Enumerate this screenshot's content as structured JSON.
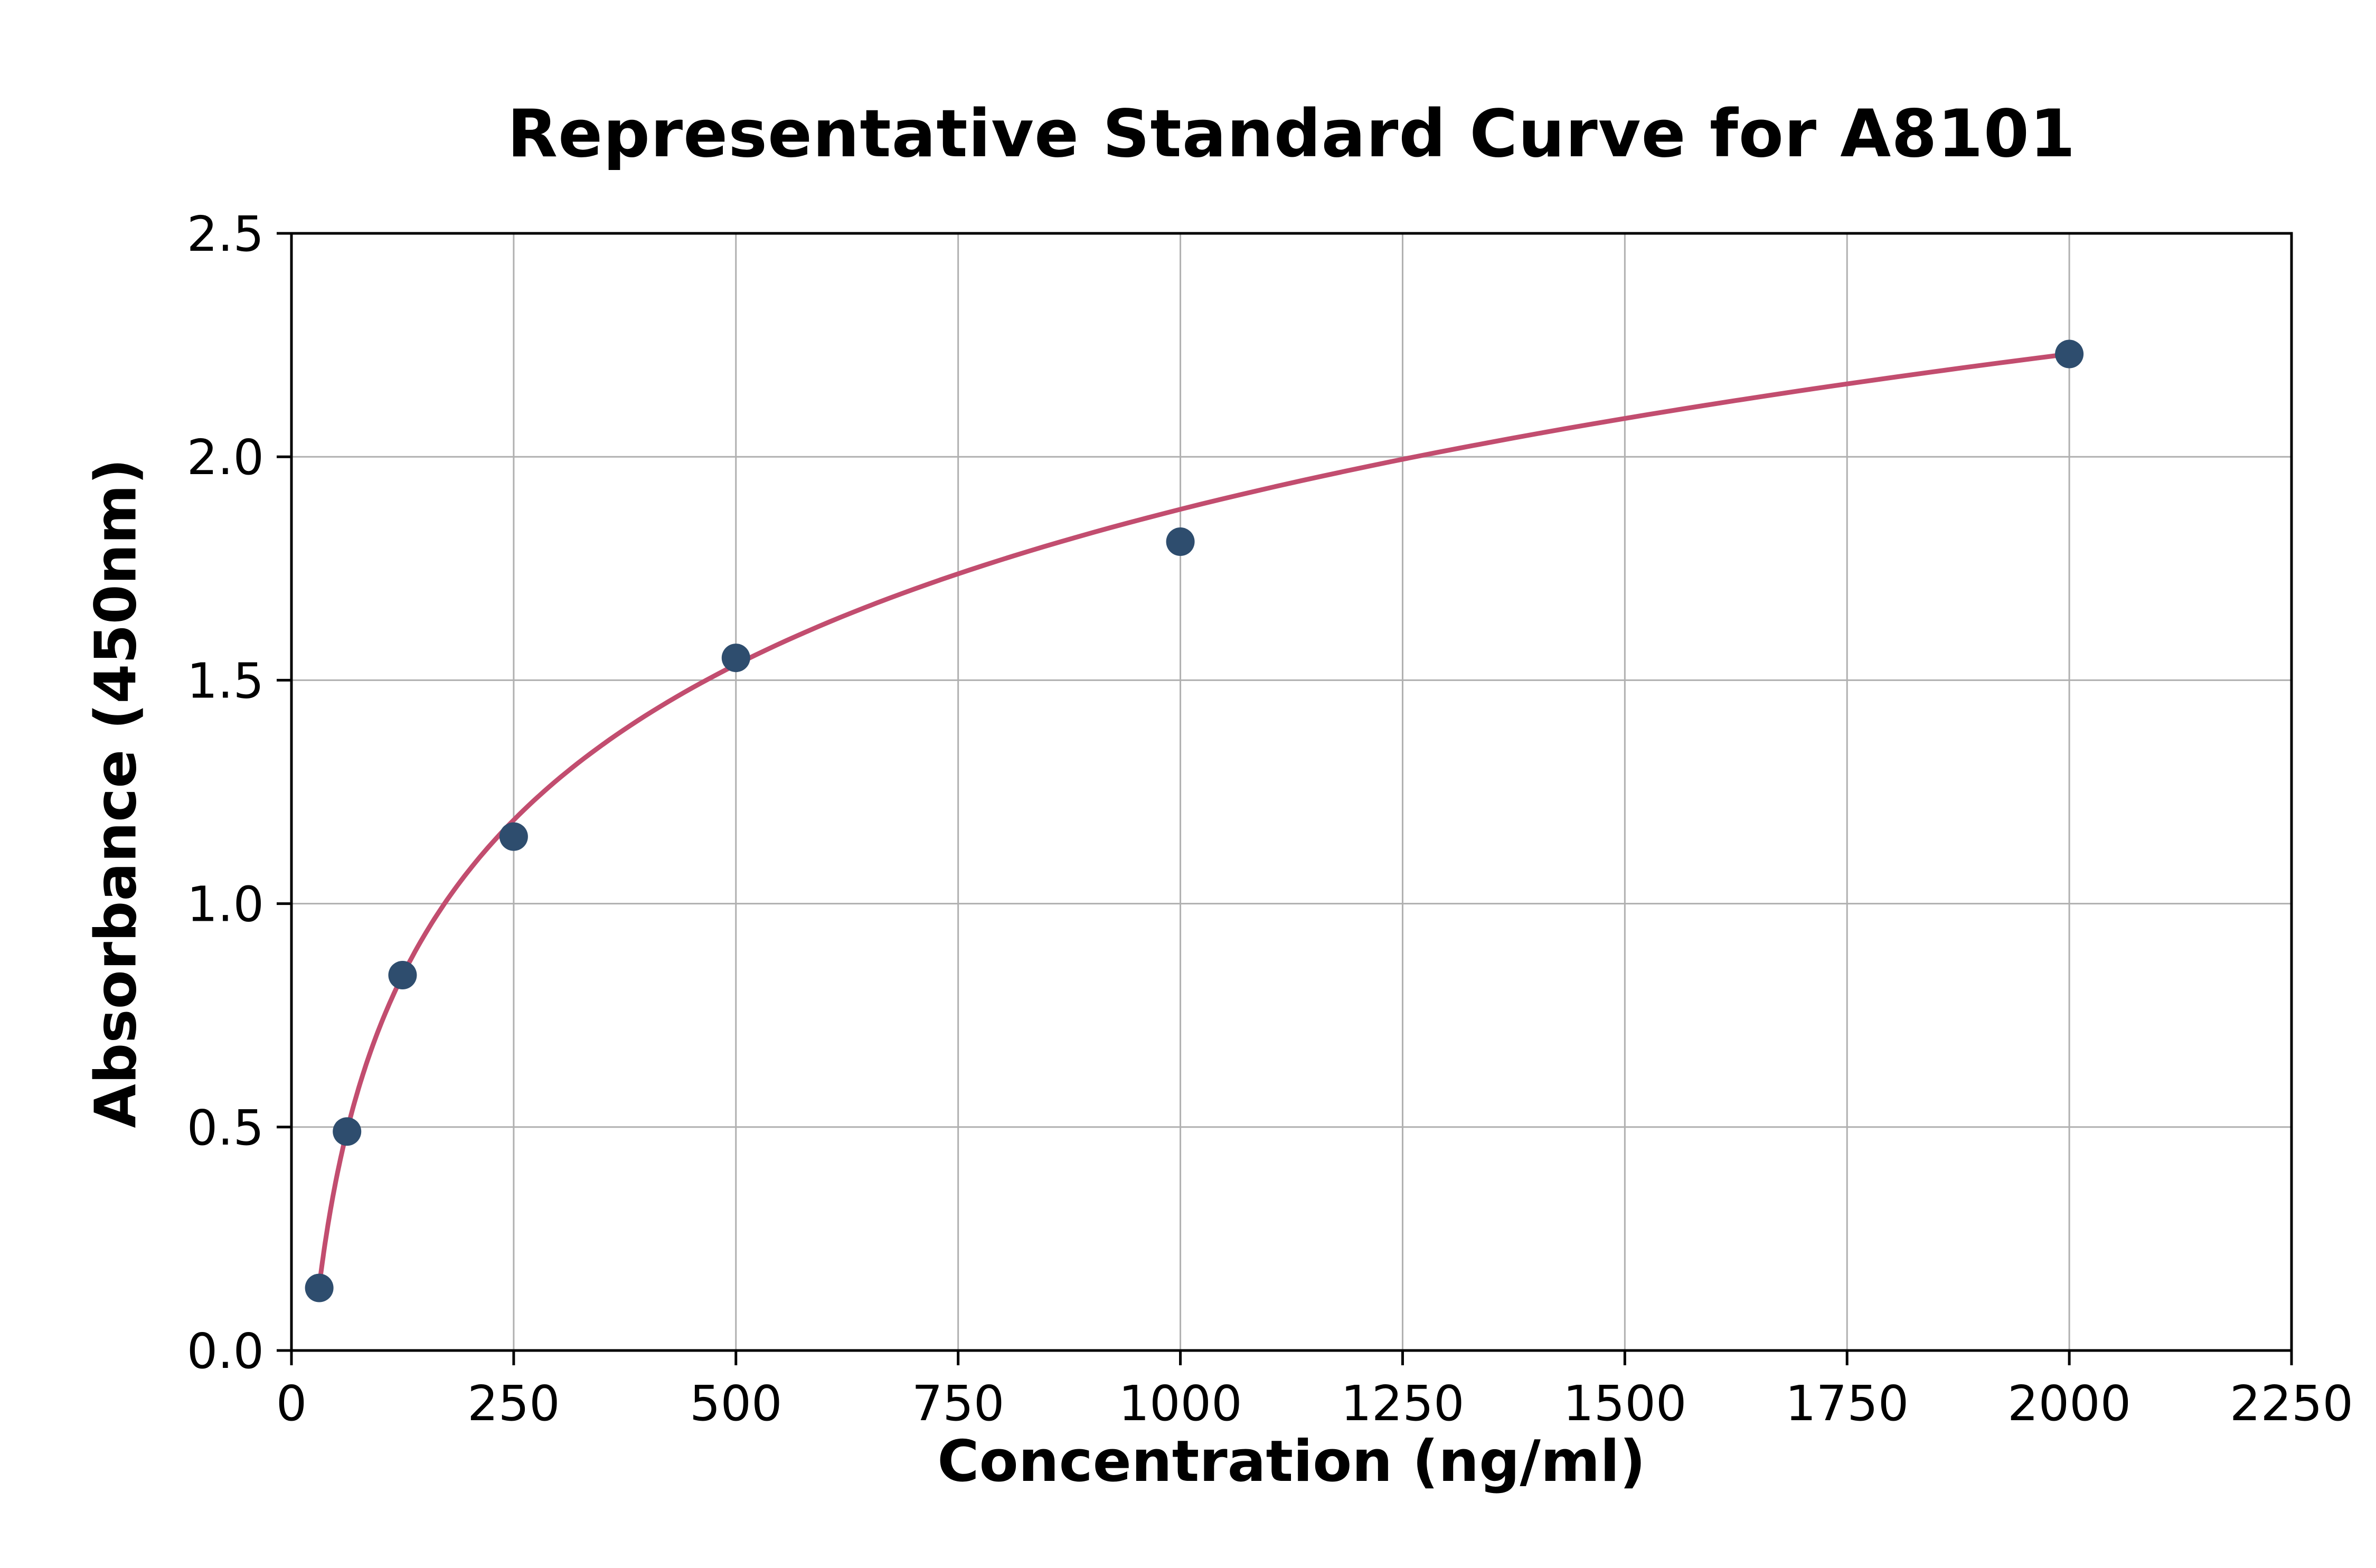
{
  "chart_data": {
    "type": "scatter",
    "title": "Representative Standard Curve for A8101",
    "xlabel": "Concentration (ng/ml)",
    "ylabel": "Absorbance (450nm)",
    "xlim": [
      0,
      2250
    ],
    "ylim": [
      0,
      2.5
    ],
    "xticks": [
      0,
      250,
      500,
      750,
      1000,
      1250,
      1500,
      1750,
      2000,
      2250
    ],
    "yticks": [
      0.0,
      0.5,
      1.0,
      1.5,
      2.0,
      2.5
    ],
    "grid": true,
    "legend": "none",
    "points": [
      [
        31.25,
        0.14
      ],
      [
        62.5,
        0.49
      ],
      [
        125,
        0.84
      ],
      [
        250,
        1.15
      ],
      [
        500,
        1.55
      ],
      [
        1000,
        1.81
      ],
      [
        2000,
        2.23
      ]
    ],
    "curve": {
      "type": "logarithmic",
      "a": -1.5825,
      "b": 0.5016,
      "x_start": 30,
      "x_end": 2005
    },
    "colors": {
      "points": "#2e4d6e",
      "curve": "#c24d6f",
      "grid": "#b0b0b0",
      "axis": "#000000",
      "background": "#ffffff"
    }
  }
}
